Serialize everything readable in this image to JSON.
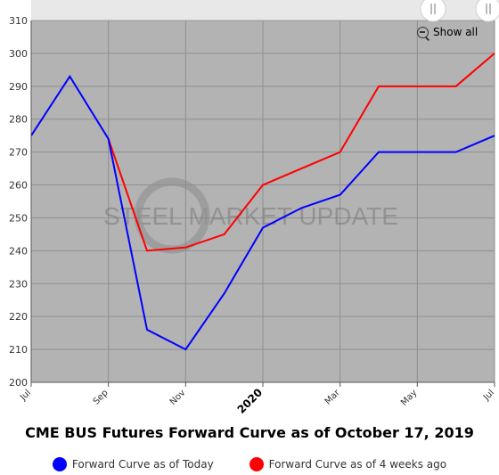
{
  "chart_data": {
    "type": "line",
    "title": "CME BUS Futures Forward Curve as of October 17, 2019",
    "x_tick_labels": [
      "Jul",
      "Sep",
      "Nov",
      "2020",
      "Mar",
      "May",
      "Jul"
    ],
    "y_ticks": [
      200,
      210,
      220,
      230,
      240,
      250,
      260,
      270,
      280,
      290,
      300,
      310
    ],
    "ylim": [
      200,
      310
    ],
    "grid": true,
    "legend_position": "bottom",
    "watermark": "STEEL MARKET UPDATE",
    "series": [
      {
        "name": "Forward Curve as of Today",
        "color": "#0000ff",
        "points": [
          [
            "2019-07",
            275
          ],
          [
            "2019-08",
            293
          ],
          [
            "2019-09",
            274
          ],
          [
            "2019-10",
            216
          ],
          [
            "2019-11",
            210
          ],
          [
            "2019-12",
            227
          ],
          [
            "2020-01",
            247
          ],
          [
            "2020-02",
            253
          ],
          [
            "2020-03",
            257
          ],
          [
            "2020-04",
            270
          ],
          [
            "2020-05",
            270
          ],
          [
            "2020-06",
            270
          ],
          [
            "2020-07",
            275
          ]
        ]
      },
      {
        "name": "Forward Curve as of 4 weeks ago",
        "color": "#ff0000",
        "points": [
          [
            "2019-09",
            274
          ],
          [
            "2019-10",
            240
          ],
          [
            "2019-11",
            241
          ],
          [
            "2019-12",
            245
          ],
          [
            "2020-01",
            260
          ],
          [
            "2020-02",
            265
          ],
          [
            "2020-03",
            270
          ],
          [
            "2020-04",
            290
          ],
          [
            "2020-05",
            290
          ],
          [
            "2020-06",
            290
          ],
          [
            "2020-07",
            300
          ]
        ]
      }
    ]
  },
  "controls": {
    "show_all_label": "Show all"
  }
}
